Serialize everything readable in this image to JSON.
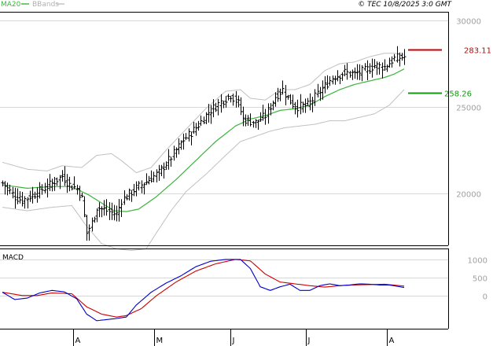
{
  "header": {
    "legend": [
      {
        "label": "MA20",
        "color": "#3cb43c"
      },
      {
        "label": "BBands",
        "color": "#b0b0b0"
      }
    ],
    "source": "© TEC 10/8/2025 3:0 GMT"
  },
  "colors": {
    "ma20": "#3cb43c",
    "bbands": "#c0c0c0",
    "price": "#000000",
    "resistance": "#cc0000",
    "support": "#119911",
    "macd": "#0000cc",
    "signal": "#cc0000",
    "grid": "#d8d8d8",
    "axis_text": "#a0a0a0"
  },
  "price_panel": {
    "y_ticks": [
      "30000",
      "25000",
      "20000"
    ],
    "resistance": {
      "label": "283.11",
      "value": 28311
    },
    "support": {
      "label": "258.26",
      "value": 25826
    }
  },
  "macd_panel": {
    "title": "MACD",
    "y_ticks": [
      "1000",
      "500",
      "0"
    ]
  },
  "x_axis": {
    "ticks": [
      "A",
      "M",
      "J",
      "J",
      "A"
    ]
  },
  "chart_data": {
    "type": "line",
    "title": "",
    "xlabel": "",
    "ylabel": "",
    "price_ylim": [
      17000,
      30500
    ],
    "macd_ylim": [
      -900,
      1300
    ],
    "ohlc_anchors": [
      [
        0,
        20600
      ],
      [
        5,
        19800
      ],
      [
        8,
        19600
      ],
      [
        12,
        19900
      ],
      [
        18,
        20400
      ],
      [
        22,
        20800
      ],
      [
        24,
        21000
      ],
      [
        27,
        20500
      ],
      [
        30,
        20300
      ],
      [
        32,
        19700
      ],
      [
        34,
        17700
      ],
      [
        36,
        18300
      ],
      [
        38,
        19200
      ],
      [
        42,
        19000
      ],
      [
        46,
        18800
      ],
      [
        48,
        19600
      ],
      [
        53,
        20200
      ],
      [
        58,
        20700
      ],
      [
        63,
        21200
      ],
      [
        68,
        22100
      ],
      [
        73,
        23100
      ],
      [
        78,
        23800
      ],
      [
        83,
        24700
      ],
      [
        88,
        25300
      ],
      [
        92,
        25700
      ],
      [
        95,
        25200
      ],
      [
        97,
        24300
      ],
      [
        102,
        24100
      ],
      [
        106,
        24500
      ],
      [
        110,
        25600
      ],
      [
        113,
        26000
      ],
      [
        115,
        25500
      ],
      [
        118,
        25000
      ],
      [
        123,
        25100
      ],
      [
        128,
        25900
      ],
      [
        133,
        26700
      ],
      [
        138,
        27000
      ],
      [
        142,
        26900
      ],
      [
        146,
        27100
      ],
      [
        150,
        27400
      ],
      [
        154,
        27300
      ],
      [
        158,
        27800
      ],
      [
        162,
        27900
      ]
    ],
    "ma20_anchors": [
      [
        0,
        20500
      ],
      [
        10,
        20300
      ],
      [
        20,
        20400
      ],
      [
        28,
        20400
      ],
      [
        35,
        19900
      ],
      [
        45,
        19000
      ],
      [
        50,
        18950
      ],
      [
        55,
        19100
      ],
      [
        62,
        19800
      ],
      [
        70,
        20800
      ],
      [
        78,
        21900
      ],
      [
        86,
        23000
      ],
      [
        94,
        23900
      ],
      [
        100,
        24300
      ],
      [
        106,
        24500
      ],
      [
        112,
        24800
      ],
      [
        118,
        24900
      ],
      [
        124,
        25100
      ],
      [
        130,
        25600
      ],
      [
        136,
        26000
      ],
      [
        142,
        26300
      ],
      [
        148,
        26500
      ],
      [
        154,
        26700
      ],
      [
        158,
        26900
      ],
      [
        162,
        27200
      ]
    ],
    "bb_upper_anchors": [
      [
        0,
        21800
      ],
      [
        10,
        21400
      ],
      [
        18,
        21300
      ],
      [
        24,
        21600
      ],
      [
        32,
        21500
      ],
      [
        38,
        22200
      ],
      [
        44,
        22300
      ],
      [
        48,
        21900
      ],
      [
        54,
        21200
      ],
      [
        60,
        21500
      ],
      [
        66,
        22500
      ],
      [
        74,
        23700
      ],
      [
        82,
        24900
      ],
      [
        90,
        25900
      ],
      [
        96,
        26000
      ],
      [
        100,
        25500
      ],
      [
        106,
        25400
      ],
      [
        112,
        26000
      ],
      [
        118,
        26000
      ],
      [
        124,
        26300
      ],
      [
        130,
        27100
      ],
      [
        136,
        27500
      ],
      [
        142,
        27600
      ],
      [
        148,
        27900
      ],
      [
        154,
        28100
      ],
      [
        158,
        28100
      ],
      [
        162,
        28000
      ]
    ],
    "bb_lower_anchors": [
      [
        0,
        19200
      ],
      [
        10,
        19000
      ],
      [
        20,
        19200
      ],
      [
        28,
        19300
      ],
      [
        34,
        18100
      ],
      [
        40,
        17100
      ],
      [
        46,
        16800
      ],
      [
        52,
        16700
      ],
      [
        58,
        16800
      ],
      [
        62,
        17700
      ],
      [
        68,
        19000
      ],
      [
        74,
        20100
      ],
      [
        82,
        21100
      ],
      [
        90,
        22200
      ],
      [
        96,
        23000
      ],
      [
        102,
        23300
      ],
      [
        108,
        23600
      ],
      [
        114,
        23800
      ],
      [
        120,
        23900
      ],
      [
        126,
        24000
      ],
      [
        132,
        24200
      ],
      [
        138,
        24200
      ],
      [
        144,
        24400
      ],
      [
        150,
        24600
      ],
      [
        156,
        25100
      ],
      [
        162,
        26000
      ]
    ],
    "macd_anchors": [
      [
        0,
        100
      ],
      [
        5,
        -100
      ],
      [
        10,
        -60
      ],
      [
        15,
        80
      ],
      [
        20,
        150
      ],
      [
        25,
        110
      ],
      [
        30,
        -80
      ],
      [
        34,
        -500
      ],
      [
        38,
        -680
      ],
      [
        42,
        -650
      ],
      [
        46,
        -620
      ],
      [
        50,
        -580
      ],
      [
        54,
        -250
      ],
      [
        60,
        100
      ],
      [
        66,
        350
      ],
      [
        72,
        550
      ],
      [
        78,
        800
      ],
      [
        84,
        950
      ],
      [
        90,
        1000
      ],
      [
        96,
        1000
      ],
      [
        100,
        750
      ],
      [
        104,
        250
      ],
      [
        108,
        150
      ],
      [
        112,
        250
      ],
      [
        116,
        320
      ],
      [
        120,
        150
      ],
      [
        124,
        150
      ],
      [
        128,
        280
      ],
      [
        132,
        330
      ],
      [
        136,
        280
      ],
      [
        140,
        300
      ],
      [
        144,
        330
      ],
      [
        148,
        320
      ],
      [
        152,
        300
      ],
      [
        156,
        300
      ],
      [
        162,
        230
      ]
    ],
    "signal_anchors": [
      [
        0,
        100
      ],
      [
        8,
        10
      ],
      [
        14,
        10
      ],
      [
        20,
        80
      ],
      [
        28,
        60
      ],
      [
        34,
        -300
      ],
      [
        40,
        -500
      ],
      [
        46,
        -580
      ],
      [
        50,
        -540
      ],
      [
        56,
        -350
      ],
      [
        62,
        0
      ],
      [
        70,
        380
      ],
      [
        78,
        680
      ],
      [
        86,
        880
      ],
      [
        94,
        1000
      ],
      [
        100,
        960
      ],
      [
        106,
        600
      ],
      [
        112,
        380
      ],
      [
        118,
        330
      ],
      [
        124,
        280
      ],
      [
        130,
        240
      ],
      [
        136,
        280
      ],
      [
        142,
        300
      ],
      [
        148,
        310
      ],
      [
        154,
        320
      ],
      [
        162,
        270
      ]
    ]
  }
}
